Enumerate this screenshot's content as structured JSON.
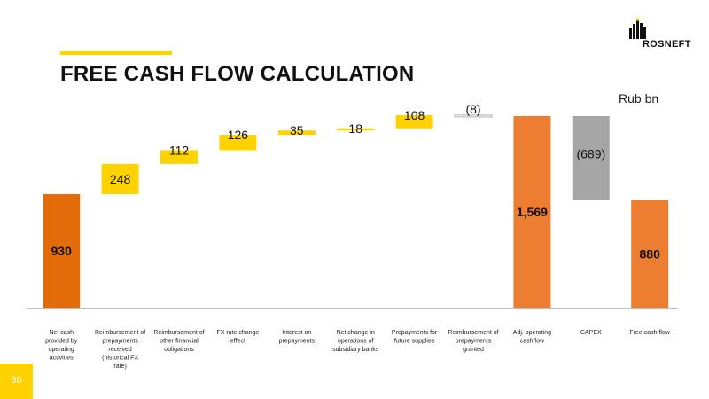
{
  "header": {
    "title": "FREE CASH FLOW CALCULATION",
    "logo_text": "ROSNEFT",
    "unit_label": "Rub bn"
  },
  "footer": {
    "page_number": "30"
  },
  "colors": {
    "accent": "#FFD200",
    "dark_orange": "#E36C0A",
    "orange": "#ED7D31",
    "gray": "#A6A6A6"
  },
  "chart_data": {
    "type": "bar",
    "subtype": "waterfall",
    "categories": [
      "Net cash provided by operating activities",
      "Reimbursement of prepayments received (historical FX rate)",
      "Reimbursement of other financial obligations",
      "FX rate change effect",
      "Interest on prepayments",
      "Net change in operations of subsidiary banks",
      "Prepayments for future supplies",
      "Reimbursement of prepayments granted",
      "Adj. operating cashflow",
      "CAPEX",
      "Free cash flow"
    ],
    "values": [
      930,
      248,
      112,
      126,
      35,
      18,
      108,
      -8,
      1569,
      -689,
      880
    ],
    "value_labels": [
      "930",
      "248",
      "112",
      "126",
      "35",
      "18",
      "108",
      "(8)",
      "1,569",
      "(689)",
      "880"
    ],
    "bar_kind": [
      "total",
      "delta",
      "delta",
      "delta",
      "delta",
      "delta",
      "delta",
      "delta",
      "total",
      "delta",
      "total"
    ],
    "bar_colors": [
      "#E36C0A",
      "#FFD200",
      "#FFD200",
      "#FFD200",
      "#FFD200",
      "#FFD200",
      "#FFD200",
      "#FFFFFF",
      "#ED7D31",
      "#A6A6A6",
      "#ED7D31"
    ],
    "ylim": [
      0,
      1569
    ],
    "grid": false,
    "legend": "none"
  }
}
